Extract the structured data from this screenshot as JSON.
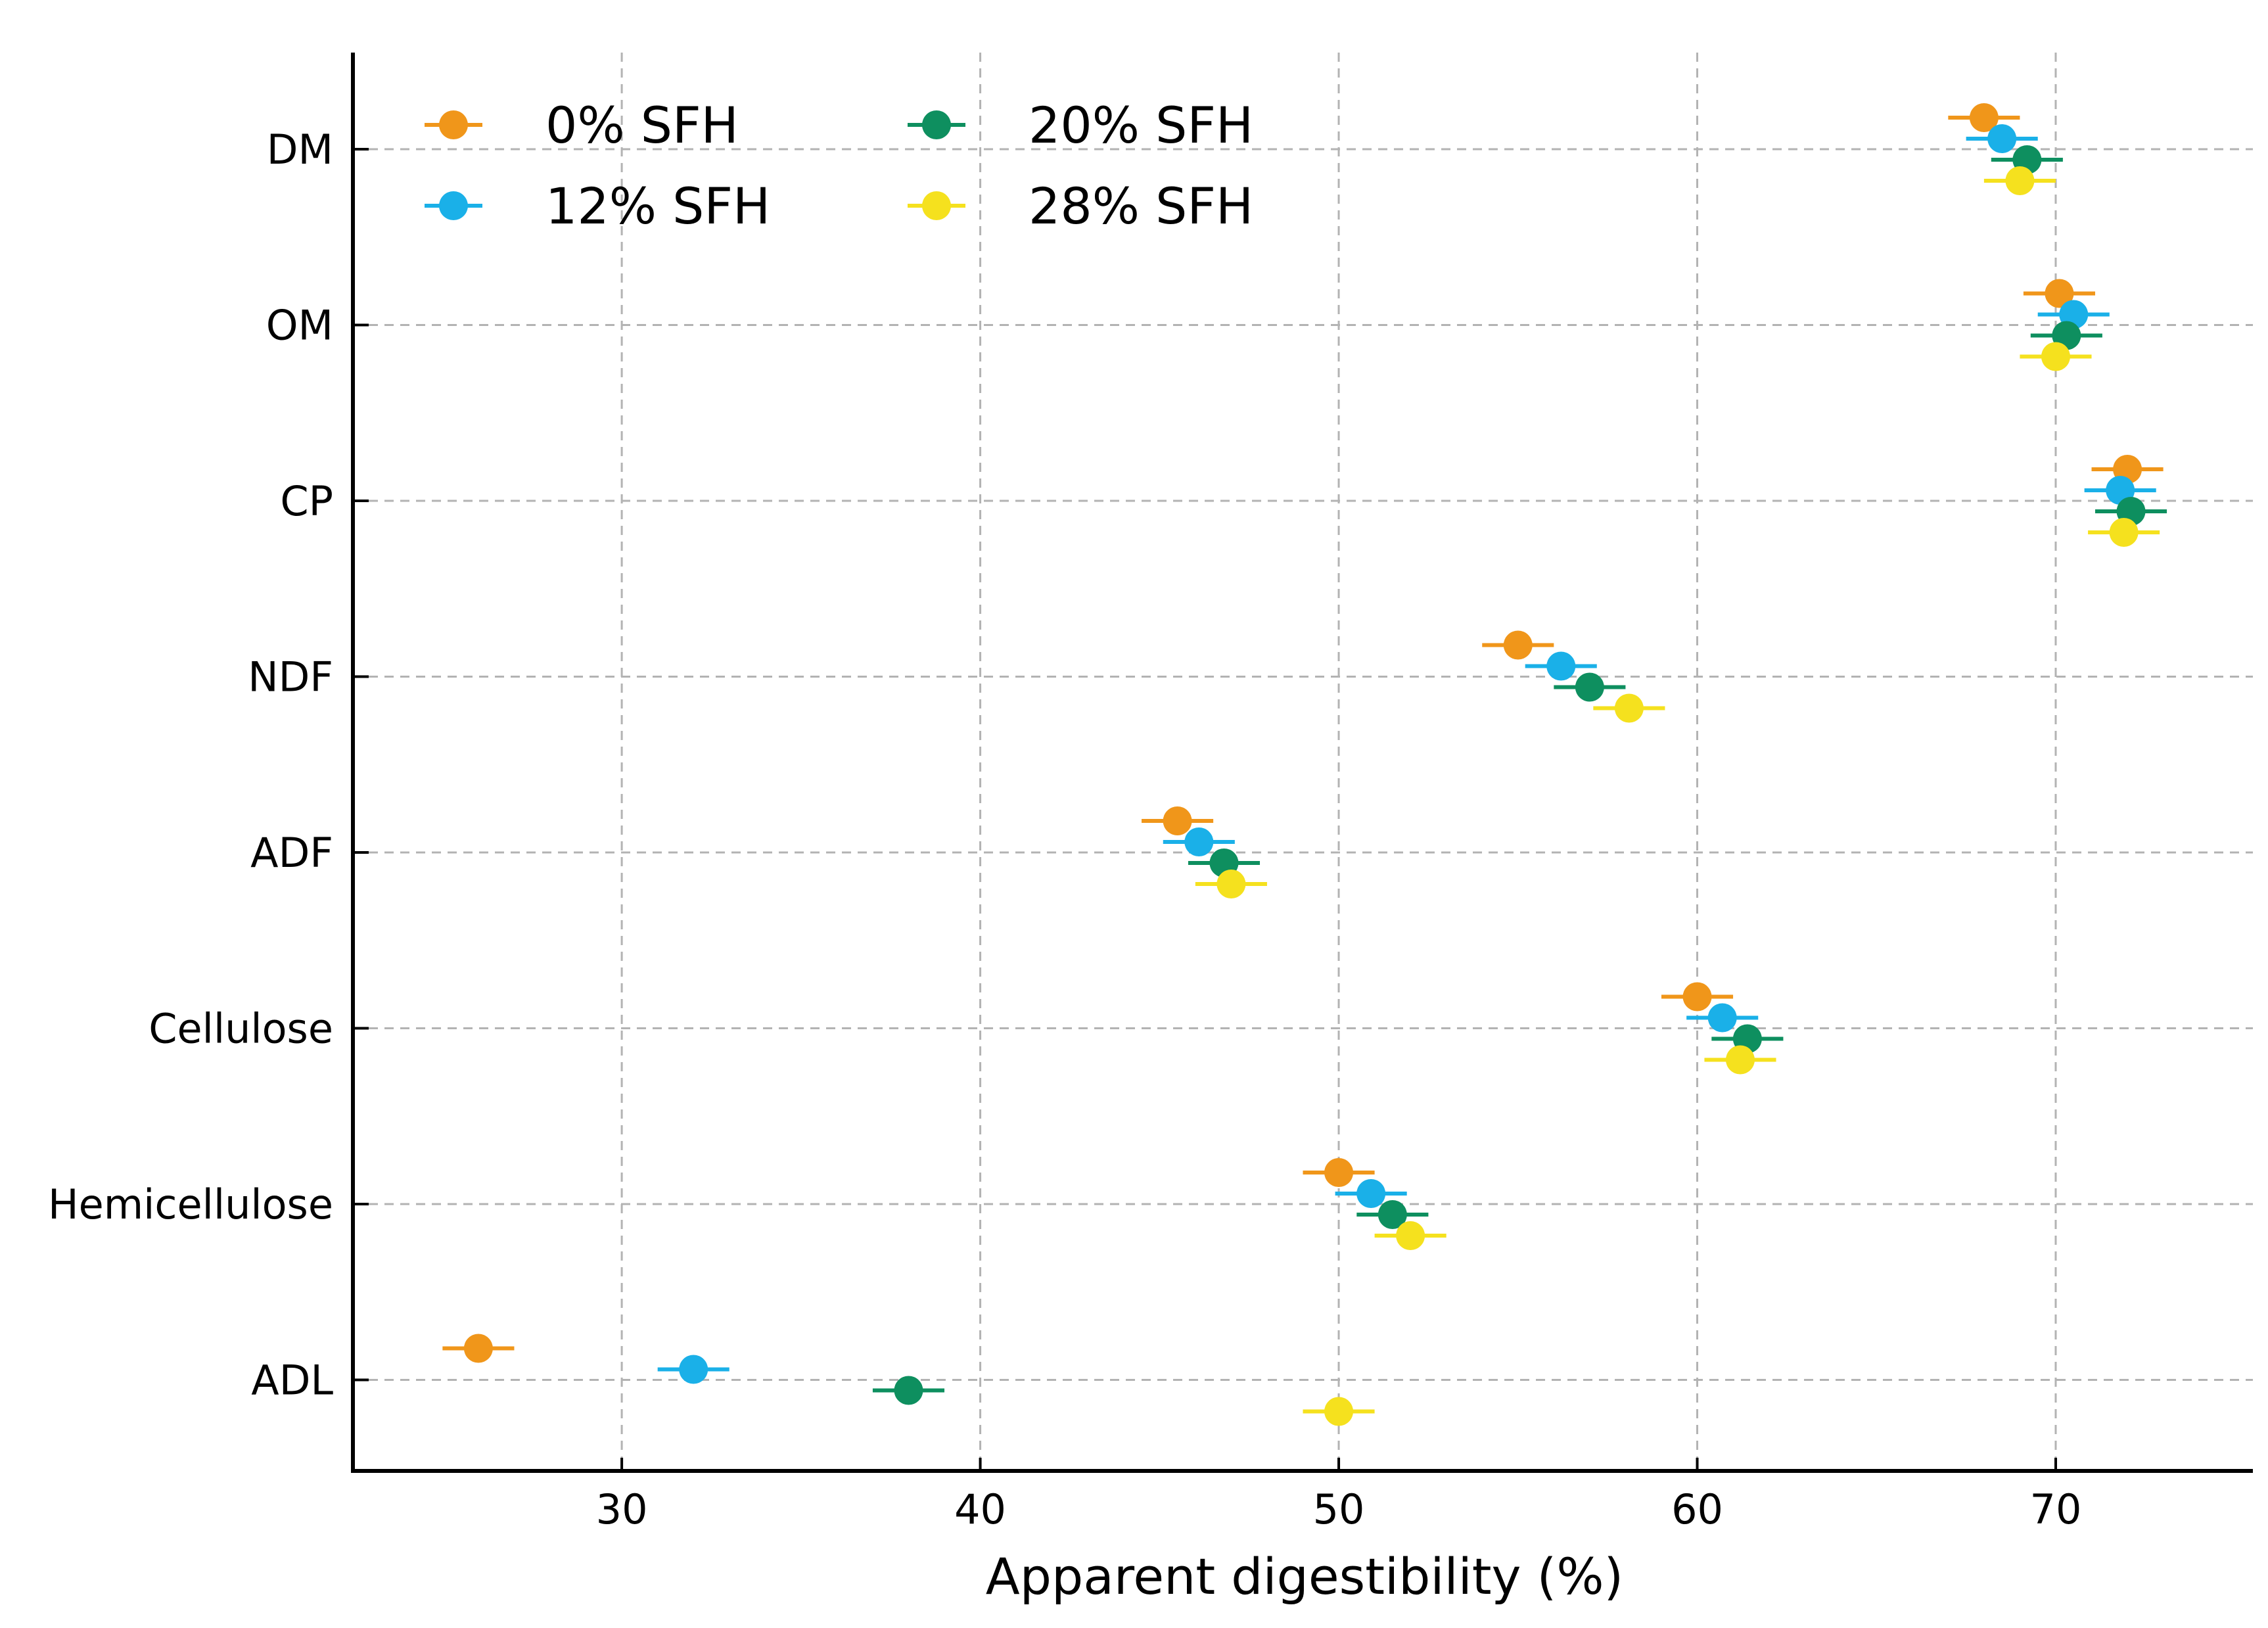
{
  "chart_data": {
    "type": "scatter",
    "title": "",
    "xlabel": "Apparent digestibility (%)",
    "ylabel": "",
    "xlim": [
      22.5,
      75.5
    ],
    "xticks": [
      30,
      40,
      50,
      60,
      70
    ],
    "categories": [
      "DM",
      "OM",
      "CP",
      "NDF",
      "ADF",
      "Cellulose",
      "Hemicellulose",
      "ADL"
    ],
    "grid": true,
    "legend_position": "top-left",
    "error_bar_halfwidth": 1,
    "series": [
      {
        "name": "0% SFH",
        "color": "#f0961a",
        "values": [
          68.0,
          70.1,
          72.0,
          55.0,
          45.5,
          60.0,
          50.0,
          26.0
        ]
      },
      {
        "name": "12% SFH",
        "color": "#1ab0e8",
        "values": [
          68.5,
          70.5,
          71.8,
          56.2,
          46.1,
          60.7,
          50.9,
          32.0
        ]
      },
      {
        "name": "20% SFH",
        "color": "#0e8f5f",
        "values": [
          69.2,
          70.3,
          72.1,
          57.0,
          46.8,
          61.4,
          51.5,
          38.0
        ]
      },
      {
        "name": "28% SFH",
        "color": "#f5e11e",
        "values": [
          69.0,
          70.0,
          71.9,
          58.1,
          47.0,
          61.2,
          52.0,
          50.0
        ]
      }
    ]
  }
}
